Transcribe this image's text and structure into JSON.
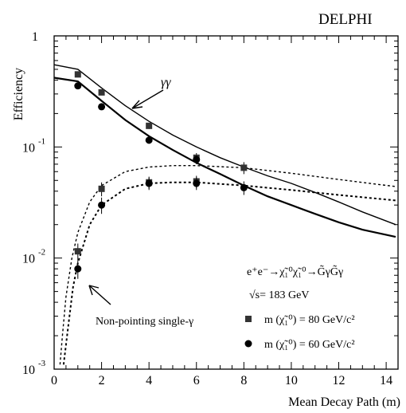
{
  "chart_data": {
    "type": "scatter",
    "title": "DELPHI",
    "xlabel": "Mean Decay Path (m)",
    "ylabel": "Efficiency",
    "xlim": [
      0,
      14.5
    ],
    "ylim": [
      0.001,
      1
    ],
    "yscale": "log",
    "x_ticks": [
      0,
      2,
      4,
      6,
      8,
      10,
      12,
      14
    ],
    "y_ticks": [
      {
        "value": 1,
        "base": "1",
        "exp": ""
      },
      {
        "value": 0.1,
        "base": "10",
        "exp": "-1"
      },
      {
        "value": 0.01,
        "base": "10",
        "exp": "-2"
      },
      {
        "value": 0.001,
        "base": "10",
        "exp": "-3"
      }
    ],
    "grid": false,
    "annotations": {
      "gamma_gamma": "γγ",
      "single_gamma": "Non-pointing single-γ"
    },
    "legend": {
      "process": "e⁺e⁻→χ̃₁⁰χ̃₁⁰→G̃γG̃γ",
      "energy": "√s= 183 GeV",
      "entries": [
        {
          "marker": "square",
          "label": "m (χ̃₁⁰) = 80 GeV/c²"
        },
        {
          "marker": "circle",
          "label": "m (χ̃₁⁰) = 60 GeV/c²"
        }
      ]
    },
    "series": [
      {
        "name": "m (χ̃₁⁰) = 80 GeV/c²",
        "channel": "γγ",
        "marker": "square",
        "points": [
          [
            1,
            0.45,
            0.02
          ],
          [
            2,
            0.31,
            0.015
          ],
          [
            4,
            0.155,
            0.01
          ],
          [
            6,
            0.08,
            0.008
          ],
          [
            8,
            0.065,
            0.008
          ]
        ]
      },
      {
        "name": "m (χ̃₁⁰) = 60 GeV/c²",
        "channel": "γγ",
        "marker": "circle",
        "points": [
          [
            1,
            0.355,
            0.015
          ],
          [
            2,
            0.23,
            0.012
          ],
          [
            4,
            0.115,
            0.008
          ],
          [
            6,
            0.077,
            0.007
          ]
        ]
      },
      {
        "name": "m (χ̃₁⁰) = 80 GeV/c²",
        "channel": "single-γ",
        "marker": "square",
        "points": [
          [
            1,
            0.0115,
            0.002
          ],
          [
            2,
            0.042,
            0.006
          ],
          [
            4,
            0.048,
            0.006
          ],
          [
            6,
            0.049,
            0.006
          ]
        ]
      },
      {
        "name": "m (χ̃₁⁰) = 60 GeV/c²",
        "channel": "single-γ",
        "marker": "circle",
        "points": [
          [
            1,
            0.008,
            0.0015
          ],
          [
            2,
            0.03,
            0.005
          ],
          [
            4,
            0.047,
            0.006
          ],
          [
            6,
            0.047,
            0.006
          ],
          [
            8,
            0.043,
            0.006
          ]
        ]
      }
    ],
    "curves": [
      {
        "channel": "γγ",
        "style": "solid-thin",
        "points": [
          [
            0,
            0.55
          ],
          [
            1,
            0.5
          ],
          [
            2,
            0.34
          ],
          [
            3,
            0.235
          ],
          [
            4,
            0.17
          ],
          [
            5,
            0.128
          ],
          [
            6,
            0.1
          ],
          [
            7,
            0.08
          ],
          [
            8,
            0.066
          ],
          [
            9,
            0.055
          ],
          [
            10,
            0.047
          ],
          [
            11,
            0.039
          ],
          [
            12,
            0.032
          ],
          [
            13,
            0.026
          ],
          [
            14.4,
            0.02
          ]
        ]
      },
      {
        "channel": "γγ",
        "style": "solid-thick",
        "points": [
          [
            0,
            0.42
          ],
          [
            1,
            0.39
          ],
          [
            2,
            0.26
          ],
          [
            3,
            0.175
          ],
          [
            4,
            0.125
          ],
          [
            5,
            0.094
          ],
          [
            6,
            0.072
          ],
          [
            7,
            0.057
          ],
          [
            8,
            0.045
          ],
          [
            9,
            0.036
          ],
          [
            10,
            0.03
          ],
          [
            11,
            0.025
          ],
          [
            12,
            0.021
          ],
          [
            13,
            0.018
          ],
          [
            14.4,
            0.0155
          ]
        ]
      },
      {
        "channel": "single-γ",
        "style": "dotted-thin",
        "points": [
          [
            0.25,
            0.0011
          ],
          [
            0.35,
            0.002
          ],
          [
            0.5,
            0.0045
          ],
          [
            0.75,
            0.01
          ],
          [
            1,
            0.017
          ],
          [
            1.5,
            0.032
          ],
          [
            2,
            0.045
          ],
          [
            3,
            0.06
          ],
          [
            4,
            0.066
          ],
          [
            5,
            0.068
          ],
          [
            6,
            0.068
          ],
          [
            8,
            0.065
          ],
          [
            10,
            0.058
          ],
          [
            12,
            0.051
          ],
          [
            14.4,
            0.044
          ]
        ]
      },
      {
        "channel": "single-γ",
        "style": "dotted-thick",
        "points": [
          [
            0.4,
            0.0011
          ],
          [
            0.6,
            0.0025
          ],
          [
            0.8,
            0.0055
          ],
          [
            1,
            0.009
          ],
          [
            1.5,
            0.02
          ],
          [
            2,
            0.03
          ],
          [
            3,
            0.042
          ],
          [
            4,
            0.047
          ],
          [
            5,
            0.048
          ],
          [
            6,
            0.048
          ],
          [
            8,
            0.045
          ],
          [
            10,
            0.041
          ],
          [
            12,
            0.037
          ],
          [
            14.4,
            0.033
          ]
        ]
      }
    ]
  }
}
